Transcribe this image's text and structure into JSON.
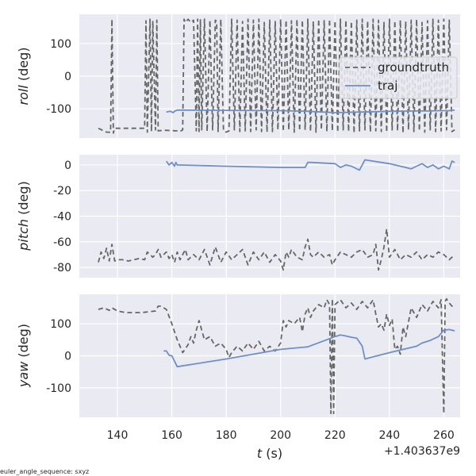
{
  "figure": {
    "footer_note": "euler_angle_sequence: sxyz",
    "x_offset_label": "+1.403637e9"
  },
  "colors": {
    "background": "#eaeaf2",
    "grid": "#ffffff",
    "groundtruth": "#666666",
    "traj": "#6f8fc6"
  },
  "chart_data": [
    {
      "type": "line",
      "ylabel": {
        "var": "roll",
        "unit": " (deg)"
      },
      "xlim": [
        126,
        266
      ],
      "ylim": [
        -190,
        190
      ],
      "yticks": [
        100,
        0,
        -100
      ],
      "xticks": [
        140,
        160,
        180,
        200,
        220,
        240,
        260
      ],
      "xticklabels": [],
      "grid": true,
      "legend": {
        "position": "right",
        "entries": [
          "groundtruth",
          "traj"
        ]
      },
      "series": [
        {
          "name": "groundtruth",
          "style": "dashed",
          "x": [
            133,
            136,
            137.5,
            138,
            138.5,
            139,
            145,
            150,
            150.5,
            151,
            152,
            152.5,
            153,
            154,
            154.5,
            155,
            157,
            162,
            163,
            164,
            164.5,
            165,
            166,
            167,
            168,
            169,
            169.5,
            170,
            170.5,
            171,
            172,
            173,
            174,
            175,
            176,
            176.5,
            177,
            178,
            179,
            180,
            181,
            182,
            183,
            184,
            185,
            186,
            187,
            188,
            189,
            190,
            191,
            192,
            193,
            194,
            195,
            196,
            197,
            198,
            199,
            200,
            201,
            202,
            203,
            204,
            205,
            206,
            207,
            208,
            209,
            210,
            211,
            212,
            213,
            214,
            215,
            216,
            217,
            218,
            219,
            220,
            221,
            222,
            223,
            224,
            225,
            226,
            227,
            228,
            229,
            230,
            231,
            232,
            233,
            234,
            235,
            236,
            237,
            238,
            239,
            240,
            241,
            242,
            243,
            244,
            245,
            246,
            247,
            248,
            249,
            250,
            251,
            252,
            253,
            254,
            255,
            256,
            257,
            258,
            259,
            260,
            261,
            262,
            263,
            264
          ],
          "y": [
            -160,
            -172,
            -172,
            175,
            -175,
            -160,
            -160,
            -160,
            170,
            -172,
            175,
            -170,
            170,
            -165,
            172,
            -168,
            -166,
            -168,
            -170,
            -165,
            175,
            165,
            175,
            165,
            172,
            -168,
            175,
            -170,
            175,
            -165,
            175,
            -170,
            172,
            -165,
            172,
            168,
            -170,
            175,
            -168,
            -172,
            -168,
            175,
            -165,
            172,
            -170,
            168,
            -168,
            175,
            -170,
            172,
            -165,
            175,
            -170,
            165,
            -172,
            172,
            -170,
            168,
            -165,
            175,
            -170,
            172,
            -165,
            170,
            -172,
            175,
            -168,
            172,
            -165,
            175,
            -170,
            168,
            -172,
            175,
            -165,
            172,
            -170,
            175,
            -168,
            170,
            -172,
            175,
            -165,
            172,
            -170,
            168,
            -175,
            172,
            -168,
            175,
            -165,
            170,
            -172,
            175,
            -168,
            172,
            -170,
            165,
            -172,
            175,
            -165,
            170,
            -168,
            172,
            -175,
            168,
            -165,
            172,
            -170,
            175,
            -168,
            165,
            -172,
            170,
            -165,
            175,
            -170,
            172,
            -168,
            175,
            -165,
            172,
            -170,
            -165
          ]
        },
        {
          "name": "traj",
          "style": "solid",
          "x": [
            158,
            159.5,
            160,
            160.5,
            161,
            162,
            180,
            200,
            210,
            220,
            230,
            240,
            250,
            255,
            258,
            260,
            262,
            264
          ],
          "y": [
            -110,
            -108,
            -110,
            -112,
            -108,
            -104,
            -105,
            -106,
            -108,
            -112,
            -110,
            -108,
            -107,
            -107,
            -106,
            -106,
            -106,
            -104
          ]
        }
      ]
    },
    {
      "type": "line",
      "ylabel": {
        "var": "pitch",
        "unit": " (deg)"
      },
      "xlim": [
        126,
        266
      ],
      "ylim": [
        -88,
        8
      ],
      "yticks": [
        0,
        -20,
        -40,
        -60,
        -80
      ],
      "xticks": [
        140,
        160,
        180,
        200,
        220,
        240,
        260
      ],
      "xticklabels": [],
      "grid": true,
      "series": [
        {
          "name": "groundtruth",
          "style": "dashed",
          "x": [
            133,
            134,
            135,
            136,
            137,
            138,
            139,
            140,
            142,
            144,
            146,
            148,
            150,
            151,
            152,
            153,
            154,
            155,
            156,
            157,
            158,
            159,
            160,
            161,
            162,
            163,
            164,
            165,
            166,
            168,
            170,
            172,
            174,
            176,
            178,
            180,
            182,
            184,
            186,
            188,
            190,
            192,
            194,
            196,
            198,
            200,
            201,
            202,
            203,
            204,
            206,
            208,
            209,
            210,
            211,
            212,
            214,
            216,
            218,
            219,
            220,
            222,
            224,
            226,
            228,
            230,
            232,
            234,
            235,
            236,
            237,
            238,
            239,
            240,
            242,
            244,
            246,
            248,
            250,
            252,
            254,
            256,
            258,
            260,
            262,
            263,
            264
          ],
          "y": [
            -76,
            -68,
            -73,
            -65,
            -75,
            -62,
            -75,
            -74,
            -74,
            -75,
            -74,
            -73,
            -74,
            -68,
            -70,
            -72,
            -70,
            -66,
            -72,
            -70,
            -68,
            -73,
            -70,
            -76,
            -68,
            -74,
            -70,
            -66,
            -74,
            -70,
            -74,
            -66,
            -78,
            -64,
            -76,
            -68,
            -74,
            -70,
            -66,
            -78,
            -68,
            -74,
            -68,
            -76,
            -70,
            -75,
            -82,
            -68,
            -72,
            -66,
            -72,
            -74,
            -64,
            -58,
            -70,
            -72,
            -68,
            -72,
            -70,
            -78,
            -74,
            -68,
            -70,
            -72,
            -68,
            -66,
            -72,
            -70,
            -62,
            -82,
            -74,
            -64,
            -50,
            -72,
            -66,
            -74,
            -70,
            -72,
            -68,
            -74,
            -70,
            -72,
            -68,
            -70,
            -74,
            -72,
            -73
          ]
        },
        {
          "name": "traj",
          "style": "solid",
          "x": [
            158,
            159,
            160,
            161,
            161.5,
            162,
            180,
            200,
            209,
            210,
            211,
            220,
            222,
            224,
            226,
            229,
            231,
            240,
            248,
            250,
            252,
            254,
            256,
            258,
            260,
            262,
            263,
            264
          ],
          "y": [
            3,
            0,
            2,
            -1,
            2,
            0,
            -1,
            -2,
            -2,
            2,
            2,
            1,
            -2,
            0,
            -1,
            -4,
            4,
            1,
            -3,
            -1,
            1,
            -2,
            0,
            -3,
            -1,
            -3,
            3,
            2
          ]
        }
      ]
    },
    {
      "type": "line",
      "ylabel": {
        "var": "yaw",
        "unit": " (deg)"
      },
      "xlim": [
        126,
        266
      ],
      "ylim": [
        -192,
        192
      ],
      "yticks": [
        100,
        0,
        -100
      ],
      "xticks": [
        140,
        160,
        180,
        200,
        220,
        240,
        260
      ],
      "xticklabels": [
        "140",
        "160",
        "180",
        "200",
        "220",
        "240",
        "260"
      ],
      "xlabel": {
        "var": "t",
        "unit": " (s)"
      },
      "grid": true,
      "series": [
        {
          "name": "groundtruth",
          "style": "dashed",
          "x": [
            133,
            135,
            137,
            138,
            140,
            143,
            146,
            149,
            152,
            154,
            155,
            156,
            158,
            160,
            162,
            164,
            166,
            167,
            168,
            169,
            170,
            172,
            174,
            176,
            178,
            180,
            181,
            182,
            184,
            186,
            188,
            190,
            192,
            194,
            196,
            198,
            200,
            201,
            202,
            203,
            205,
            207,
            208,
            209,
            210,
            211,
            212,
            214,
            216,
            217,
            218,
            218.5,
            219,
            219.5,
            220,
            222,
            224,
            226,
            228,
            230,
            232,
            234,
            235,
            236,
            237,
            238,
            239,
            240,
            241,
            242,
            243,
            244,
            245,
            246,
            248,
            250,
            252,
            254,
            256,
            258,
            259,
            260,
            260.5,
            261,
            262,
            263,
            264
          ],
          "y": [
            145,
            150,
            142,
            150,
            140,
            135,
            135,
            135,
            138,
            140,
            155,
            155,
            145,
            100,
            50,
            10,
            35,
            60,
            40,
            80,
            110,
            50,
            60,
            30,
            40,
            20,
            -5,
            10,
            30,
            15,
            40,
            20,
            45,
            15,
            30,
            15,
            40,
            110,
            90,
            110,
            100,
            120,
            75,
            130,
            150,
            120,
            140,
            160,
            150,
            175,
            160,
            -180,
            178,
            -180,
            160,
            175,
            150,
            165,
            145,
            170,
            150,
            175,
            130,
            90,
            100,
            80,
            130,
            95,
            115,
            20,
            30,
            5,
            90,
            60,
            150,
            120,
            160,
            140,
            170,
            150,
            175,
            -180,
            170,
            178,
            165,
            155,
            155
          ]
        },
        {
          "name": "traj",
          "style": "solid",
          "x": [
            157,
            158,
            159,
            160,
            162,
            180,
            200,
            210,
            220,
            222,
            224,
            226,
            228,
            230,
            231,
            240,
            250,
            252,
            255,
            258,
            260,
            262,
            264
          ],
          "y": [
            15,
            15,
            2,
            0,
            -34,
            -10,
            20,
            28,
            60,
            65,
            62,
            58,
            55,
            30,
            -10,
            10,
            30,
            40,
            48,
            60,
            80,
            82,
            78
          ]
        }
      ]
    }
  ]
}
